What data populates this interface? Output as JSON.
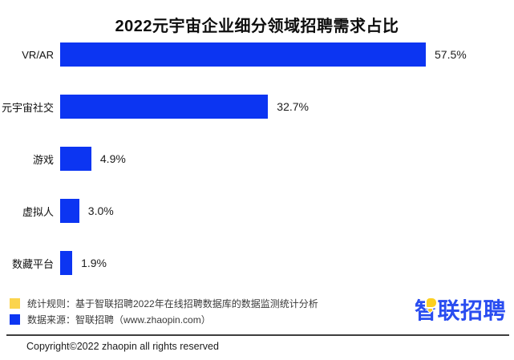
{
  "title": "2022元宇宙企业细分领域招聘需求占比",
  "chart_data": {
    "type": "bar",
    "orientation": "horizontal",
    "title": "2022元宇宙企业细分领域招聘需求占比",
    "categories": [
      "VR/AR",
      "元宇宙社交",
      "游戏",
      "虚拟人",
      "数藏平台"
    ],
    "values": [
      57.5,
      32.7,
      4.9,
      3.0,
      1.9
    ],
    "value_labels": [
      "57.5%",
      "32.7%",
      "4.9%",
      "3.0%",
      "1.9%"
    ],
    "xlabel": "",
    "ylabel": "",
    "xlim": [
      0,
      57.5
    ],
    "grid": false,
    "legend_position": "none",
    "bar_color": "#0c35f2"
  },
  "legend": {
    "items": [
      {
        "swatch_color": "#fbd44d",
        "label": "统计规则：基于智联招聘2022年在线招聘数据库的数据监测统计分析"
      },
      {
        "swatch_color": "#0c35f2",
        "label": "数据来源：智联招聘（www.zhaopin.com）"
      }
    ]
  },
  "logo": {
    "text": "智联招聘",
    "color": "#2a4df0",
    "accent_color": "#fcd021"
  },
  "footer": {
    "copyright": "Copyright©2022 zhaopin all rights reserved"
  },
  "colors": {
    "background": "#ffffff",
    "title_text": "#0d0d0d",
    "bar_blue": "#0c35f2",
    "legend_yellow": "#fbd44d",
    "divider": "#3d3d3d"
  }
}
